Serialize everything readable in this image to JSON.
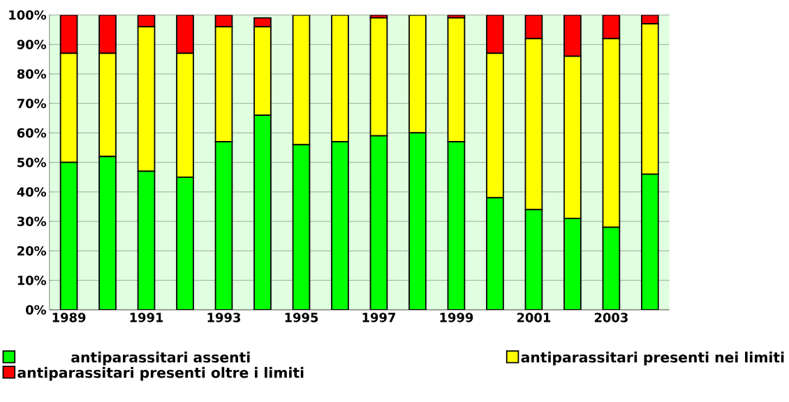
{
  "chart_data": {
    "type": "bar",
    "stacked": true,
    "categories": [
      "1989",
      null,
      "1991",
      null,
      "1993",
      null,
      "1995",
      null,
      "1997",
      null,
      "1999",
      null,
      "2001",
      null,
      "2003",
      null
    ],
    "series": [
      {
        "name": "antiparassitari assenti",
        "color": "#00ff00",
        "values": [
          50,
          52,
          47,
          45,
          57,
          66,
          56,
          57,
          59,
          60,
          57,
          38,
          34,
          31,
          28,
          46
        ]
      },
      {
        "name": "antiparassitari presenti nei limiti",
        "color": "#ffff00",
        "values": [
          37,
          35,
          49,
          42,
          39,
          30,
          44,
          43,
          40,
          40,
          42,
          49,
          58,
          55,
          64,
          51
        ]
      },
      {
        "name": "antiparassitari presenti oltre i limiti",
        "color": "#ff0000",
        "values": [
          13,
          13,
          4,
          13,
          4,
          3,
          0,
          0,
          1,
          0,
          1,
          13,
          8,
          14,
          8,
          3
        ]
      }
    ],
    "ylim": [
      0,
      100
    ],
    "yticks": [
      {
        "value": 0,
        "label": "0%"
      },
      {
        "value": 10,
        "label": "10%"
      },
      {
        "value": 20,
        "label": "20%"
      },
      {
        "value": 30,
        "label": "30%"
      },
      {
        "value": 40,
        "label": "40%"
      },
      {
        "value": 50,
        "label": "50%"
      },
      {
        "value": 60,
        "label": "60%"
      },
      {
        "value": 70,
        "label": "70%"
      },
      {
        "value": 80,
        "label": "80%"
      },
      {
        "value": 90,
        "label": "90%"
      },
      {
        "value": 100,
        "label": "100%"
      }
    ],
    "grid": "y",
    "legend": "bottom"
  }
}
